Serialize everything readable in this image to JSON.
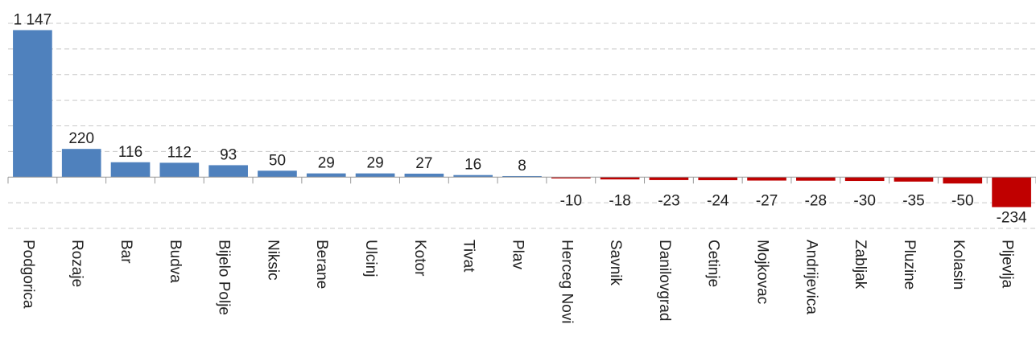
{
  "chart_data": {
    "type": "bar",
    "categories": [
      "Podgorica",
      "Rozaje",
      "Bar",
      "Budva",
      "Bijelo Polje",
      "Niksic",
      "Berane",
      "Ulcinj",
      "Kotor",
      "Tivat",
      "Plav",
      "Herceg Novi",
      "Savnik",
      "Danilovgrad",
      "Cetinje",
      "Mojkovac",
      "Andrijevica",
      "Zabljak",
      "Pluzine",
      "Kolasin",
      "Pljevlja"
    ],
    "values": [
      1147,
      220,
      116,
      112,
      93,
      50,
      29,
      29,
      27,
      16,
      8,
      -10,
      -18,
      -23,
      -24,
      -27,
      -28,
      -30,
      -35,
      -50,
      -234
    ],
    "value_labels": [
      "1 147",
      "220",
      "116",
      "112",
      "93",
      "50",
      "29",
      "29",
      "27",
      "16",
      "8",
      "-10",
      "-18",
      "-23",
      "-24",
      "-27",
      "-28",
      "-30",
      "-35",
      "-50",
      "-234"
    ],
    "color": "#4f81bd",
    "negative_color": "#c00000",
    "ylim": [
      -400,
      1200
    ],
    "yticks": [
      -400,
      -200,
      0,
      200,
      400,
      600,
      800,
      1000,
      1200
    ],
    "grid": true
  }
}
